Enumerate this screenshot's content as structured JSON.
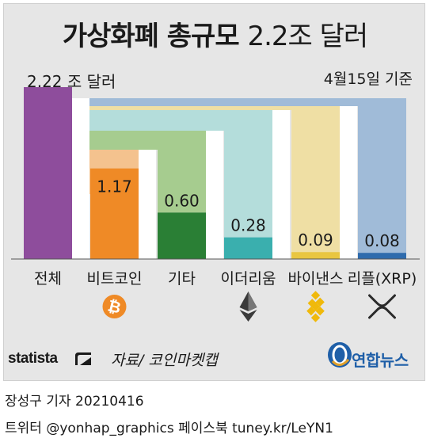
{
  "title_main": "가상화폐 총규모",
  "title_value": "2.2조 달러",
  "total_label": "2.22 조 달러",
  "date_note": "4월15일 기준",
  "source": "자료/ 코인마켓캡",
  "statista": "statista",
  "agency": "연합뉴스",
  "credit_line1": "장성구 기자  20210416",
  "credit_line2": "트위터 @yonhap_graphics  페이스북 tuney.kr/LeYN1",
  "chart_data": {
    "type": "bar",
    "categories": [
      "전체",
      "비트코인",
      "기타",
      "이더리움",
      "바이낸스",
      "리플(XRP)"
    ],
    "values": [
      2.22,
      1.17,
      0.6,
      0.28,
      0.09,
      0.08
    ],
    "value_labels": [
      "2.22 조 달러",
      "1.17",
      "0.60",
      "0.28",
      "0.09",
      "0.08"
    ],
    "icons": [
      "",
      "bitcoin-icon",
      "",
      "ethereum-icon",
      "binance-icon",
      "ripple-icon"
    ],
    "colors": {
      "total": "#8e4d9c",
      "bitcoin": "#ef8a26",
      "etc": "#2a7f35",
      "ethereum": "#3aafae",
      "binance": "#e9c641",
      "ripple": "#2e6bad",
      "bitcoin_fill": "#f4c28e",
      "etc_fill": "#a6cc8f",
      "ethereum_fill": "#b4dddb",
      "binance_fill": "#efdfa4",
      "ripple_fill": "#a0bbd8"
    },
    "ylim": [
      0,
      2.22
    ]
  }
}
